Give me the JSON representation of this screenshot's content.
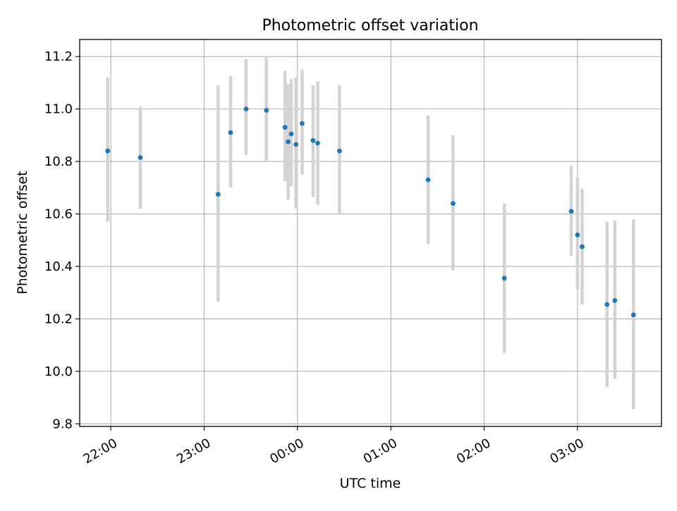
{
  "chart_data": {
    "type": "scatter",
    "title": "Photometric offset variation",
    "xlabel": "UTC time",
    "ylabel": "Photometric offset",
    "x_unit": "UTC clock time (HH:MM); after 23:59 the axis continues into the next day",
    "xlim": [
      "21:40",
      "03:54"
    ],
    "ylim": [
      9.79,
      11.265
    ],
    "xticks": [
      "22:00",
      "23:00",
      "00:00",
      "01:00",
      "02:00",
      "03:00"
    ],
    "yticks": [
      9.8,
      10.0,
      10.2,
      10.4,
      10.6,
      10.8,
      11.0,
      11.2
    ],
    "ytick_labels": [
      "9.8",
      "10.0",
      "10.2",
      "10.4",
      "10.6",
      "10.8",
      "11.0",
      "11.2"
    ],
    "grid": true,
    "legend": "none",
    "point_color": "#1f77b4",
    "errorbar_color": "#d3d3d3",
    "points": [
      {
        "x": "21:58",
        "y": 10.84,
        "y_low": 10.57,
        "y_high": 11.12
      },
      {
        "x": "22:19",
        "y": 10.815,
        "y_low": 10.62,
        "y_high": 11.01
      },
      {
        "x": "23:09",
        "y": 10.675,
        "y_low": 10.265,
        "y_high": 11.09
      },
      {
        "x": "23:17",
        "y": 10.91,
        "y_low": 10.7,
        "y_high": 11.125
      },
      {
        "x": "23:27",
        "y": 11.0,
        "y_low": 10.825,
        "y_high": 11.19
      },
      {
        "x": "23:40",
        "y": 10.995,
        "y_low": 10.8,
        "y_high": 11.2
      },
      {
        "x": "23:52",
        "y": 10.93,
        "y_low": 10.725,
        "y_high": 11.145
      },
      {
        "x": "23:54",
        "y": 10.875,
        "y_low": 10.655,
        "y_high": 11.095
      },
      {
        "x": "23:56",
        "y": 10.905,
        "y_low": 10.705,
        "y_high": 11.115
      },
      {
        "x": "23:59",
        "y": 10.865,
        "y_low": 10.62,
        "y_high": 11.12
      },
      {
        "x": "00:03",
        "y": 10.945,
        "y_low": 10.75,
        "y_high": 11.15
      },
      {
        "x": "00:10",
        "y": 10.88,
        "y_low": 10.665,
        "y_high": 11.09
      },
      {
        "x": "00:13",
        "y": 10.87,
        "y_low": 10.635,
        "y_high": 11.105
      },
      {
        "x": "00:27",
        "y": 10.84,
        "y_low": 10.6,
        "y_high": 11.09
      },
      {
        "x": "01:24",
        "y": 10.73,
        "y_low": 10.485,
        "y_high": 10.975
      },
      {
        "x": "01:40",
        "y": 10.64,
        "y_low": 10.385,
        "y_high": 10.9
      },
      {
        "x": "02:13",
        "y": 10.355,
        "y_low": 10.07,
        "y_high": 10.64
      },
      {
        "x": "02:56",
        "y": 10.61,
        "y_low": 10.44,
        "y_high": 10.785
      },
      {
        "x": "03:00",
        "y": 10.52,
        "y_low": 10.31,
        "y_high": 10.74
      },
      {
        "x": "03:03",
        "y": 10.475,
        "y_low": 10.255,
        "y_high": 10.695
      },
      {
        "x": "03:19",
        "y": 10.255,
        "y_low": 9.94,
        "y_high": 10.57
      },
      {
        "x": "03:24",
        "y": 10.27,
        "y_low": 9.97,
        "y_high": 10.575
      },
      {
        "x": "03:36",
        "y": 10.215,
        "y_low": 9.855,
        "y_high": 10.58
      }
    ]
  }
}
